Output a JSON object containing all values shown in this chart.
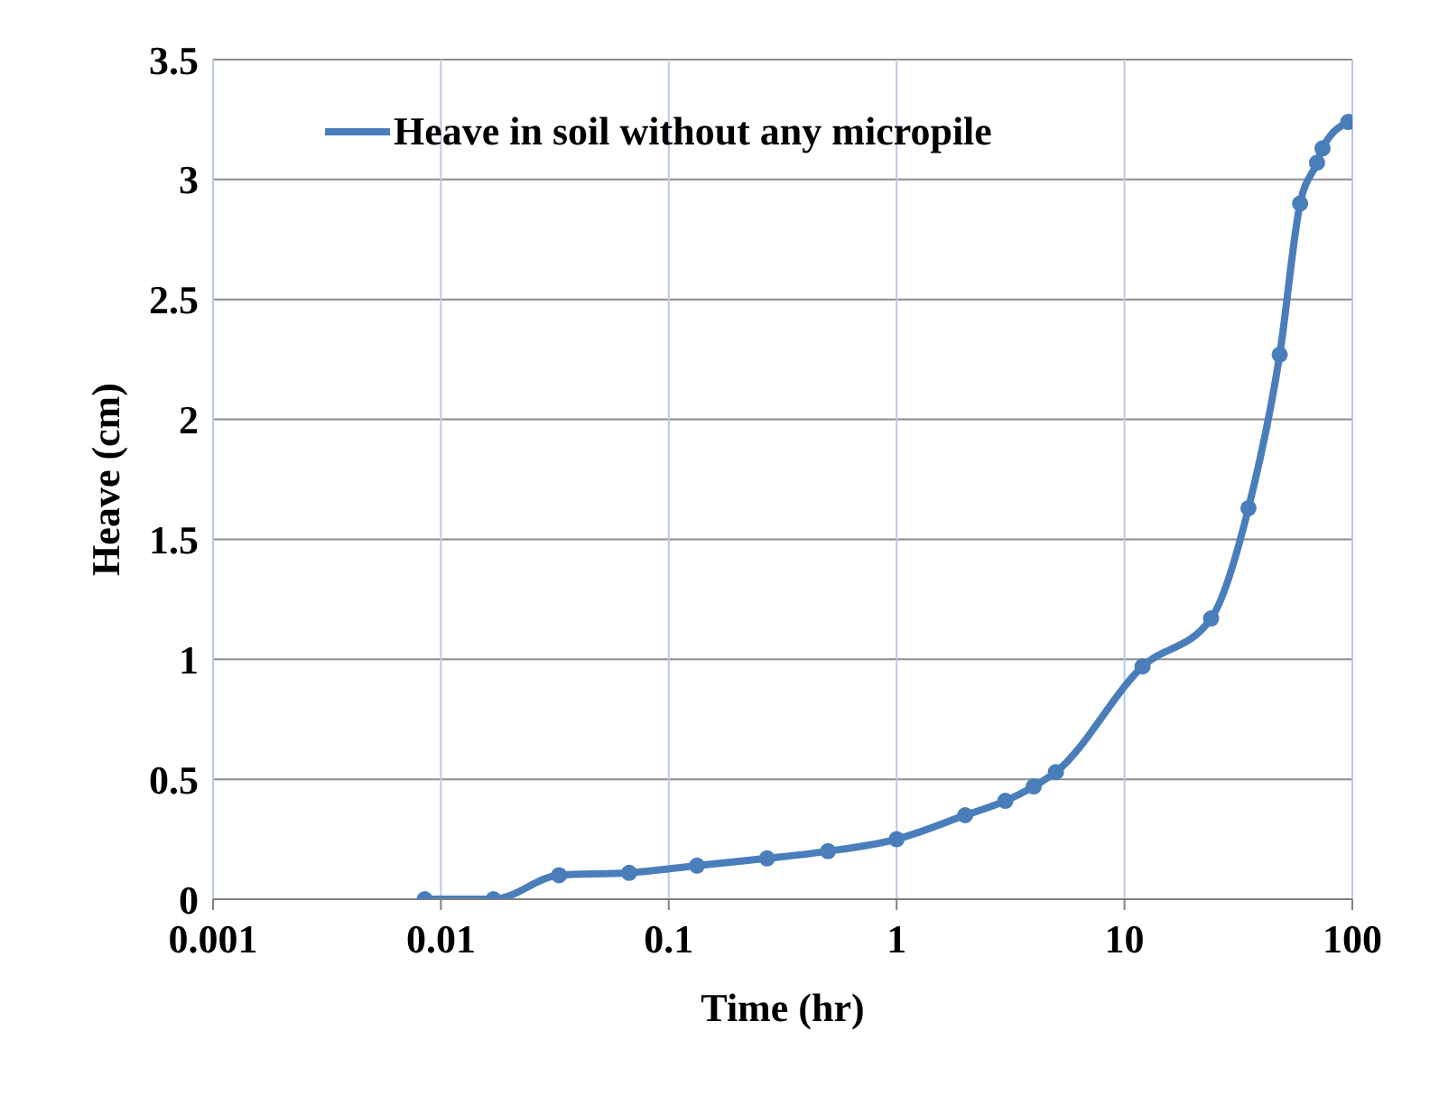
{
  "chart_data": {
    "type": "line",
    "xlabel": "Time (hr)",
    "ylabel": "Heave (cm)",
    "series": [
      {
        "name": "Heave in soil without any micropile",
        "color": "#4a7ebb",
        "x": [
          0.0085,
          0.017,
          0.033,
          0.067,
          0.133,
          0.27,
          0.5,
          1,
          2,
          3,
          4,
          5,
          12,
          24,
          35,
          48,
          59,
          70,
          74,
          96
        ],
        "values": [
          0,
          0,
          0.1,
          0.11,
          0.14,
          0.17,
          0.2,
          0.25,
          0.35,
          0.41,
          0.47,
          0.53,
          0.97,
          1.17,
          1.63,
          2.27,
          2.9,
          3.07,
          3.13,
          3.24
        ]
      }
    ],
    "log": "x",
    "xlim": [
      0.001,
      100
    ],
    "xticks": [
      0.001,
      0.01,
      0.1,
      1,
      10,
      100
    ],
    "ylim": [
      0,
      3.5
    ],
    "yticks": [
      0,
      0.5,
      1,
      1.5,
      2,
      2.5,
      3,
      3.5
    ],
    "grid": true,
    "legend": "top left",
    "marker": "circle",
    "line_style": "solid"
  }
}
